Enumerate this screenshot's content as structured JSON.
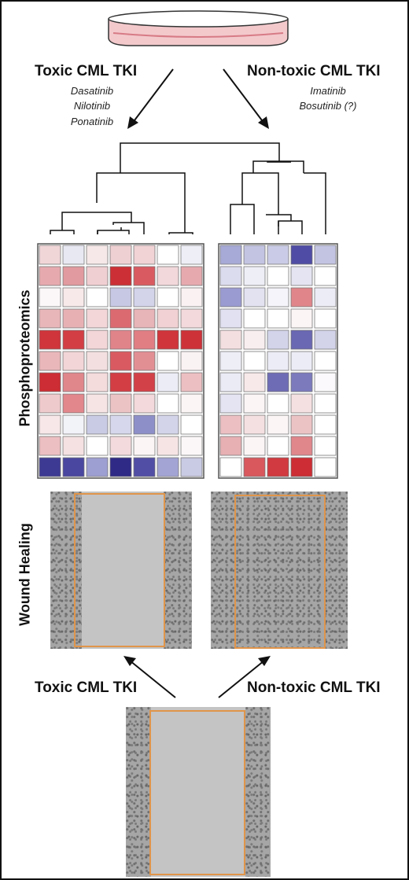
{
  "top": {
    "left_title": "Toxic CML TKI",
    "left_drugs": [
      "Dasatinib",
      "Nilotinib",
      "Ponatinib"
    ],
    "right_title": "Non-toxic CML TKI",
    "right_drugs": [
      "Imatinib",
      "Bosutinib (?)"
    ]
  },
  "side_labels": {
    "phospho": "Phosphoproteomics",
    "wound": "Wound Healing"
  },
  "bottom": {
    "left_title": "Toxic CML TKI",
    "right_title": "Non-toxic CML TKI"
  },
  "colors": {
    "dish_fill": "#f3c9cc",
    "dish_rim": "#d77b86",
    "wound_box": "#e0954a",
    "heatmap_border": "#555555"
  },
  "heatmap_left": [
    [
      "#f1d6d8",
      "#e8e8f3",
      "#f6e8e8",
      "#efd0d2",
      "#f1d3d5",
      "#ffffff",
      "#eeeef7"
    ],
    [
      "#e6aaae",
      "#e19a9f",
      "#f0cfd2",
      "#cc2f35",
      "#d95b61",
      "#f2d8da",
      "#e6aaae"
    ],
    [
      "#fbf7f8",
      "#f7e8e9",
      "#ffffff",
      "#c7c9e4",
      "#d3d4ea",
      "#ffffff",
      "#f9f1f2"
    ],
    [
      "#e8b6b9",
      "#e7b1b4",
      "#f2d6d8",
      "#db6a70",
      "#e7b4b7",
      "#f1d1d3",
      "#f3d9db"
    ],
    [
      "#cf353b",
      "#d23e44",
      "#f2d6d8",
      "#e0848a",
      "#e07e84",
      "#cf353b",
      "#cd3238"
    ],
    [
      "#e9b7ba",
      "#f2d5d7",
      "#f4dfe0",
      "#d95b61",
      "#e28f94",
      "#ffffff",
      "#faf3f3"
    ],
    [
      "#cd2d34",
      "#e0878c",
      "#f4dbdc",
      "#d23e44",
      "#d34148",
      "#ececf6",
      "#ecbfc2"
    ],
    [
      "#efcacc",
      "#e2878c",
      "#f6e4e5",
      "#ecc3c5",
      "#f3d9db",
      "#ffffff",
      "#fbf5f5"
    ],
    [
      "#f7e7e8",
      "#f2f2f9",
      "#c9cae4",
      "#d6d7ec",
      "#8d8fc9",
      "#d3d4ea",
      "#ffffff"
    ],
    [
      "#ecbfc2",
      "#f5e1e2",
      "#ffffff",
      "#f3dadc",
      "#fbf5f5",
      "#f6e4e5",
      "#fbf7f8"
    ],
    [
      "#3d3a94",
      "#4a47a0",
      "#9d9ed1",
      "#2f2a86",
      "#514ea6",
      "#a3a4d4",
      "#c9cae4"
    ]
  ],
  "heatmap_right": [
    [
      "#a7a9d6",
      "#c3c4e2",
      "#cacbe6",
      "#4f4ca5",
      "#c3c4e2"
    ],
    [
      "#dcdcef",
      "#eeeef7",
      "#ffffff",
      "#e4e4f2",
      "#ffffff"
    ],
    [
      "#9a9bd1",
      "#e2e2f1",
      "#f4f4fa",
      "#e0868b",
      "#ececf6"
    ],
    [
      "#e1e1f1",
      "#ffffff",
      "#ffffff",
      "#fbf5f6",
      "#ffffff"
    ],
    [
      "#f4dfe0",
      "#f9eeef",
      "#d3d4ea",
      "#6a67b3",
      "#d3d4ea"
    ],
    [
      "#eeeef7",
      "#ffffff",
      "#ececf6",
      "#ececf6",
      "#ffffff"
    ],
    [
      "#ebebf5",
      "#f7e8e9",
      "#6e6cb5",
      "#7c7abd",
      "#fbf9fb"
    ],
    [
      "#e4e4f2",
      "#fbf5f6",
      "#ffffff",
      "#f5e0e1",
      "#ffffff"
    ],
    [
      "#ecc0c3",
      "#f5e0e1",
      "#fbf5f6",
      "#ecc3c5",
      "#ffffff"
    ],
    [
      "#e7b0b3",
      "#fbf5f6",
      "#ffffff",
      "#e0878c",
      "#ffffff"
    ],
    [
      "#ffffff",
      "#d8585e",
      "#d13a40",
      "#cd2d34",
      "#ffffff"
    ]
  ]
}
